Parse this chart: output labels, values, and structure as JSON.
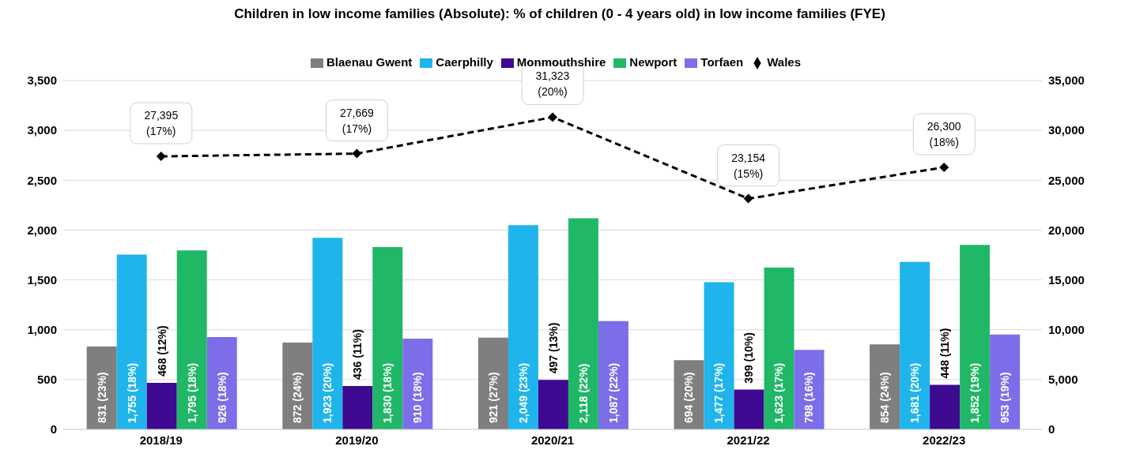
{
  "chart_data": {
    "type": "bar",
    "title": "Children in low income families (Absolute): % of children (0 - 4 years old) in low income families (FYE)",
    "categories": [
      "2018/19",
      "2019/20",
      "2020/21",
      "2021/22",
      "2022/23"
    ],
    "series": [
      {
        "name": "Blaenau Gwent",
        "color": "#7f7f7f",
        "values": [
          831,
          872,
          921,
          694,
          854
        ],
        "value_labels": [
          "831 (23%)",
          "872 (24%)",
          "921 (27%)",
          "694 (20%)",
          "854 (24%)"
        ]
      },
      {
        "name": "Caerphilly",
        "color": "#1fb5ec",
        "values": [
          1755,
          1923,
          2049,
          1477,
          1681
        ],
        "value_labels": [
          "1,755 (18%)",
          "1,923 (20%)",
          "2,049 (23%)",
          "1,477 (17%)",
          "1,681 (20%)"
        ]
      },
      {
        "name": "Monmouthshire",
        "color": "#3d0a91",
        "values": [
          468,
          436,
          497,
          399,
          448
        ],
        "value_labels": [
          "468 (12%)",
          "436 (11%)",
          "497 (13%)",
          "399 (10%)",
          "448 (11%)"
        ]
      },
      {
        "name": "Newport",
        "color": "#20b767",
        "values": [
          1795,
          1830,
          2118,
          1623,
          1852
        ],
        "value_labels": [
          "1,795 (18%)",
          "1,830 (18%)",
          "2,118 (22%)",
          "1,623 (17%)",
          "1,852 (19%)"
        ]
      },
      {
        "name": "Torfaen",
        "color": "#7b6ee8",
        "values": [
          926,
          910,
          1087,
          798,
          953
        ],
        "value_labels": [
          "926 (18%)",
          "910 (18%)",
          "1,087 (22%)",
          "798 (16%)",
          "953 (19%)"
        ]
      },
      {
        "name": "Wales",
        "type": "line",
        "axis": "y2",
        "color": "#000000",
        "marker": "diamond",
        "line_style": "dashed",
        "values": [
          27395,
          27669,
          31323,
          23154,
          26300
        ],
        "value_labels": [
          "27,395 (17%)",
          "27,669 (17%)",
          "31,323 (20%)",
          "23,154 (15%)",
          "26,300 (18%)"
        ]
      }
    ],
    "ylim": [
      0,
      3500
    ],
    "yticks": [
      {
        "value": 0,
        "label": "0"
      },
      {
        "value": 500,
        "label": "500"
      },
      {
        "value": 1000,
        "label": "1,000"
      },
      {
        "value": 1500,
        "label": "1,500"
      },
      {
        "value": 2000,
        "label": "2,000"
      },
      {
        "value": 2500,
        "label": "2,500"
      },
      {
        "value": 3000,
        "label": "3,000"
      },
      {
        "value": 3500,
        "label": "3,500"
      }
    ],
    "y2lim": [
      0,
      35000
    ],
    "y2ticks": [
      {
        "value": 0,
        "label": "0"
      },
      {
        "value": 5000,
        "label": "5,000"
      },
      {
        "value": 10000,
        "label": "10,000"
      },
      {
        "value": 15000,
        "label": "15,000"
      },
      {
        "value": 20000,
        "label": "20,000"
      },
      {
        "value": 25000,
        "label": "25,000"
      },
      {
        "value": 30000,
        "label": "30,000"
      },
      {
        "value": 35000,
        "label": "35,000"
      }
    ],
    "grid": "y",
    "legend": "top"
  }
}
